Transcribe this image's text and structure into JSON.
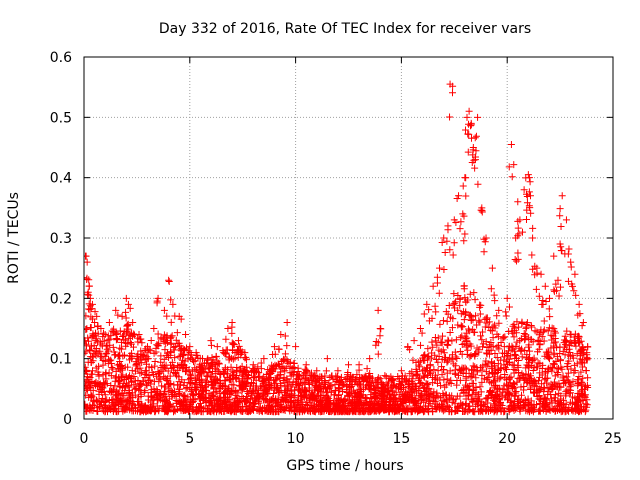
{
  "chart_data": {
    "type": "scatter",
    "title": "Day 332 of 2016, Rate Of TEC Index for receiver vars",
    "xlabel": "GPS time / hours",
    "ylabel": "ROTI / TECUs",
    "xlim": [
      0,
      25
    ],
    "ylim": [
      0,
      0.6
    ],
    "xticks": [
      0,
      5,
      10,
      15,
      20,
      25
    ],
    "xtick_labels": [
      "0",
      "5",
      "10",
      "15",
      "20",
      "25"
    ],
    "yticks": [
      0,
      0.1,
      0.2,
      0.3,
      0.4,
      0.5,
      0.6
    ],
    "ytick_labels": [
      "0",
      "0.1",
      "0.2",
      "0.3",
      "0.4",
      "0.5",
      "0.6"
    ],
    "grid": true,
    "marker": "+",
    "color": "#ff0000",
    "series": [
      {
        "name": "ROTI",
        "x": [
          0.05,
          0.1,
          0.15,
          0.2,
          0.25,
          0.3,
          0.4,
          0.5,
          0.6,
          0.8,
          1.0,
          1.2,
          1.5,
          1.8,
          2.0,
          2.1,
          2.3,
          2.6,
          3.0,
          3.3,
          3.5,
          3.8,
          4.0,
          4.2,
          4.5,
          4.8,
          5.0,
          5.3,
          5.6,
          6.0,
          6.3,
          6.6,
          6.8,
          7.0,
          7.3,
          7.6,
          8.0,
          8.5,
          9.0,
          9.3,
          9.6,
          10.0,
          10.5,
          11.0,
          11.5,
          12.0,
          12.5,
          13.0,
          13.5,
          13.9,
          14.0,
          14.5,
          15.0,
          15.3,
          15.6,
          15.9,
          16.2,
          16.5,
          16.8,
          17.0,
          17.2,
          17.3,
          17.5,
          17.7,
          17.9,
          18.0,
          18.1,
          18.2,
          18.3,
          18.4,
          18.5,
          18.6,
          18.8,
          19.0,
          19.3,
          19.6,
          20.0,
          20.2,
          20.4,
          20.5,
          20.6,
          20.8,
          21.0,
          21.05,
          21.1,
          21.2,
          21.4,
          21.6,
          21.8,
          22.0,
          22.2,
          22.4,
          22.5,
          22.6,
          22.8,
          23.0,
          23.2,
          23.4,
          23.6,
          23.8
        ],
        "y": [
          0.13,
          0.27,
          0.26,
          0.21,
          0.22,
          0.2,
          0.19,
          0.16,
          0.17,
          0.15,
          0.14,
          0.16,
          0.18,
          0.17,
          0.2,
          0.19,
          0.16,
          0.14,
          0.12,
          0.15,
          0.2,
          0.18,
          0.23,
          0.19,
          0.17,
          0.14,
          0.12,
          0.11,
          0.1,
          0.13,
          0.12,
          0.11,
          0.15,
          0.16,
          0.13,
          0.11,
          0.09,
          0.1,
          0.12,
          0.14,
          0.16,
          0.12,
          0.09,
          0.08,
          0.1,
          0.08,
          0.09,
          0.09,
          0.1,
          0.18,
          0.15,
          0.07,
          0.08,
          0.12,
          0.13,
          0.15,
          0.19,
          0.22,
          0.25,
          0.3,
          0.32,
          0.555,
          0.33,
          0.37,
          0.34,
          0.4,
          0.5,
          0.51,
          0.49,
          0.45,
          0.43,
          0.5,
          0.35,
          0.3,
          0.25,
          0.18,
          0.2,
          0.455,
          0.3,
          0.36,
          0.33,
          0.38,
          0.405,
          0.4,
          0.37,
          0.3,
          0.25,
          0.24,
          0.22,
          0.2,
          0.27,
          0.23,
          0.29,
          0.37,
          0.33,
          0.26,
          0.24,
          0.19,
          0.16,
          0.12
        ]
      }
    ],
    "envelope_hours": [
      0,
      0.5,
      1,
      1.5,
      2,
      2.5,
      3,
      3.5,
      4,
      4.5,
      5,
      5.5,
      6,
      6.5,
      7,
      7.5,
      8,
      8.5,
      9,
      9.5,
      10,
      10.5,
      11,
      11.5,
      12,
      12.5,
      13,
      13.5,
      14,
      14.5,
      15,
      15.5,
      16,
      16.5,
      17,
      17.5,
      18,
      18.5,
      19,
      19.5,
      20,
      20.5,
      21,
      21.5,
      22,
      22.5,
      23,
      23.5,
      23.8
    ],
    "envelope_values": [
      0.14,
      0.14,
      0.13,
      0.14,
      0.15,
      0.13,
      0.11,
      0.12,
      0.14,
      0.12,
      0.1,
      0.09,
      0.09,
      0.1,
      0.12,
      0.1,
      0.08,
      0.07,
      0.08,
      0.09,
      0.08,
      0.07,
      0.06,
      0.06,
      0.06,
      0.06,
      0.06,
      0.06,
      0.06,
      0.06,
      0.06,
      0.06,
      0.09,
      0.12,
      0.16,
      0.2,
      0.21,
      0.2,
      0.16,
      0.14,
      0.13,
      0.16,
      0.16,
      0.14,
      0.14,
      0.14,
      0.13,
      0.13,
      0.1
    ]
  }
}
